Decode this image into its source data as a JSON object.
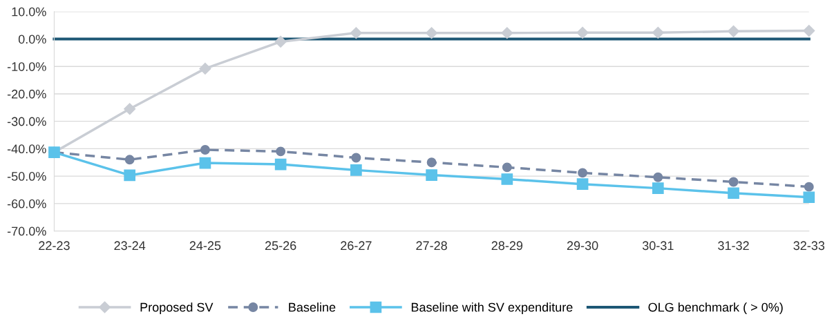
{
  "chart_data": {
    "type": "line",
    "categories": [
      "22-23",
      "23-24",
      "24-25",
      "25-26",
      "26-27",
      "27-28",
      "28-29",
      "29-30",
      "30-31",
      "31-32",
      "32-33"
    ],
    "series": [
      {
        "name": "Proposed SV",
        "color": "#c9cdd4",
        "marker": "diamond",
        "line_style": "solid",
        "values": [
          -41.3,
          -25.5,
          -10.8,
          -1.0,
          2.2,
          2.2,
          2.2,
          2.3,
          2.3,
          2.8,
          3.0
        ]
      },
      {
        "name": "Baseline",
        "color": "#7686a3",
        "marker": "circle",
        "line_style": "dashed",
        "values": [
          -41.3,
          -44.0,
          -40.4,
          -41.0,
          -43.3,
          -45.0,
          -46.8,
          -48.8,
          -50.4,
          -52.1,
          -53.9
        ]
      },
      {
        "name": "Baseline with SV expenditure",
        "color": "#5bc2ea",
        "marker": "square",
        "line_style": "solid",
        "values": [
          -41.3,
          -49.7,
          -45.2,
          -45.7,
          -47.8,
          -49.6,
          -51.1,
          -52.9,
          -54.4,
          -56.2,
          -57.7
        ]
      },
      {
        "name": "OLG benchmark ( > 0%)",
        "color": "#1d5775",
        "marker": "none",
        "line_style": "solid",
        "values": [
          0,
          0,
          0,
          0,
          0,
          0,
          0,
          0,
          0,
          0,
          0
        ]
      }
    ],
    "ylim": [
      -70,
      10
    ],
    "yticks": [
      {
        "value": -70,
        "label": "-70.0%"
      },
      {
        "value": -60,
        "label": "-60.0%"
      },
      {
        "value": -50,
        "label": "-50.0%"
      },
      {
        "value": -40,
        "label": "-40.0%"
      },
      {
        "value": -30,
        "label": "-30.0%"
      },
      {
        "value": -20,
        "label": "-20.0%"
      },
      {
        "value": -10,
        "label": "-10.0%"
      },
      {
        "value": 0,
        "label": "0.0%"
      },
      {
        "value": 10,
        "label": "10.0%"
      }
    ],
    "grid": "y",
    "legend": "bottom"
  }
}
